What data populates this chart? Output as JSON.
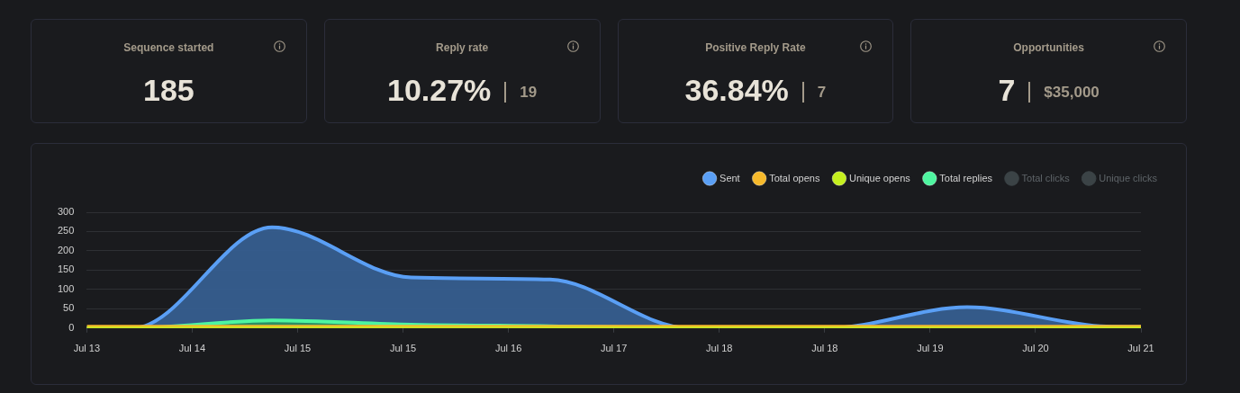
{
  "chart_data": [
    {
      "type": "other",
      "title": "Sequence started",
      "annotations": [
        "185"
      ]
    },
    {
      "type": "other",
      "title": "Reply rate",
      "annotations": [
        "10.27%",
        "19"
      ]
    },
    {
      "type": "other",
      "title": "Positive Reply Rate",
      "annotations": [
        "36.84%",
        "7"
      ]
    },
    {
      "type": "other",
      "title": "Opportunities",
      "annotations": [
        "7",
        "$35,000"
      ]
    },
    {
      "type": "area",
      "x": [
        "--07-13T16:00",
        "--07-14",
        "--07-15",
        "--07-16",
        "--07-17",
        "--07-18",
        "--07-19",
        "--07-20",
        "--07-21",
        "--07-21T06:00"
      ],
      "series": [
        {
          "name": "Sent",
          "color": "#5a9ff5",
          "values": [
            0,
            0,
            261,
            131,
            126,
            0,
            0,
            54,
            4,
            3
          ]
        },
        {
          "name": "Total opens",
          "type": "line",
          "color": "#f6b92b",
          "values": [
            0,
            0,
            0,
            0,
            0,
            0,
            0,
            0,
            0,
            0
          ]
        },
        {
          "name": "Unique opens",
          "type": "line",
          "color": "#c5f01e",
          "values": [
            0,
            0,
            0,
            0,
            0,
            0,
            0,
            0,
            0,
            0
          ]
        },
        {
          "name": "Total replies",
          "color": "#4ef5a0",
          "values": [
            0,
            0,
            20,
            9,
            5,
            0,
            0,
            0,
            0,
            0
          ]
        },
        {
          "name": "Total clicks",
          "color": "#3b4346",
          "values": [
            null,
            null,
            null,
            null,
            null,
            null,
            null,
            null,
            null,
            null
          ]
        },
        {
          "name": "Unique clicks",
          "color": "#3b4346",
          "values": [
            null,
            null,
            null,
            null,
            null,
            null,
            null,
            null,
            null,
            null
          ]
        }
      ],
      "xlim": [
        "--07-13T16:00",
        "--07-21T06:00"
      ],
      "xticks": [
        {
          "value": "--07-13T16:00",
          "label": "Jul 13"
        },
        {
          "value": "--07-14T10:12",
          "label": "Jul 14"
        },
        {
          "value": "--07-15T04:24",
          "label": "Jul 15"
        },
        {
          "value": "--07-15T22:36",
          "label": "Jul 15"
        },
        {
          "value": "--07-16T16:48",
          "label": "Jul 16"
        },
        {
          "value": "--07-17T11:00",
          "label": "Jul 17"
        },
        {
          "value": "--07-18T05:12",
          "label": "Jul 18"
        },
        {
          "value": "--07-18T23:24",
          "label": "Jul 18"
        },
        {
          "value": "--07-19T17:36",
          "label": "Jul 19"
        },
        {
          "value": "--07-20T11:48",
          "label": "Jul 20"
        },
        {
          "value": "--07-21T06:00",
          "label": "Jul 21"
        }
      ],
      "ylim": [
        0,
        300
      ],
      "yticks": [
        0,
        50,
        100,
        150,
        200,
        250,
        300
      ],
      "grid": "y",
      "legend": "top right",
      "marker": "none"
    }
  ]
}
